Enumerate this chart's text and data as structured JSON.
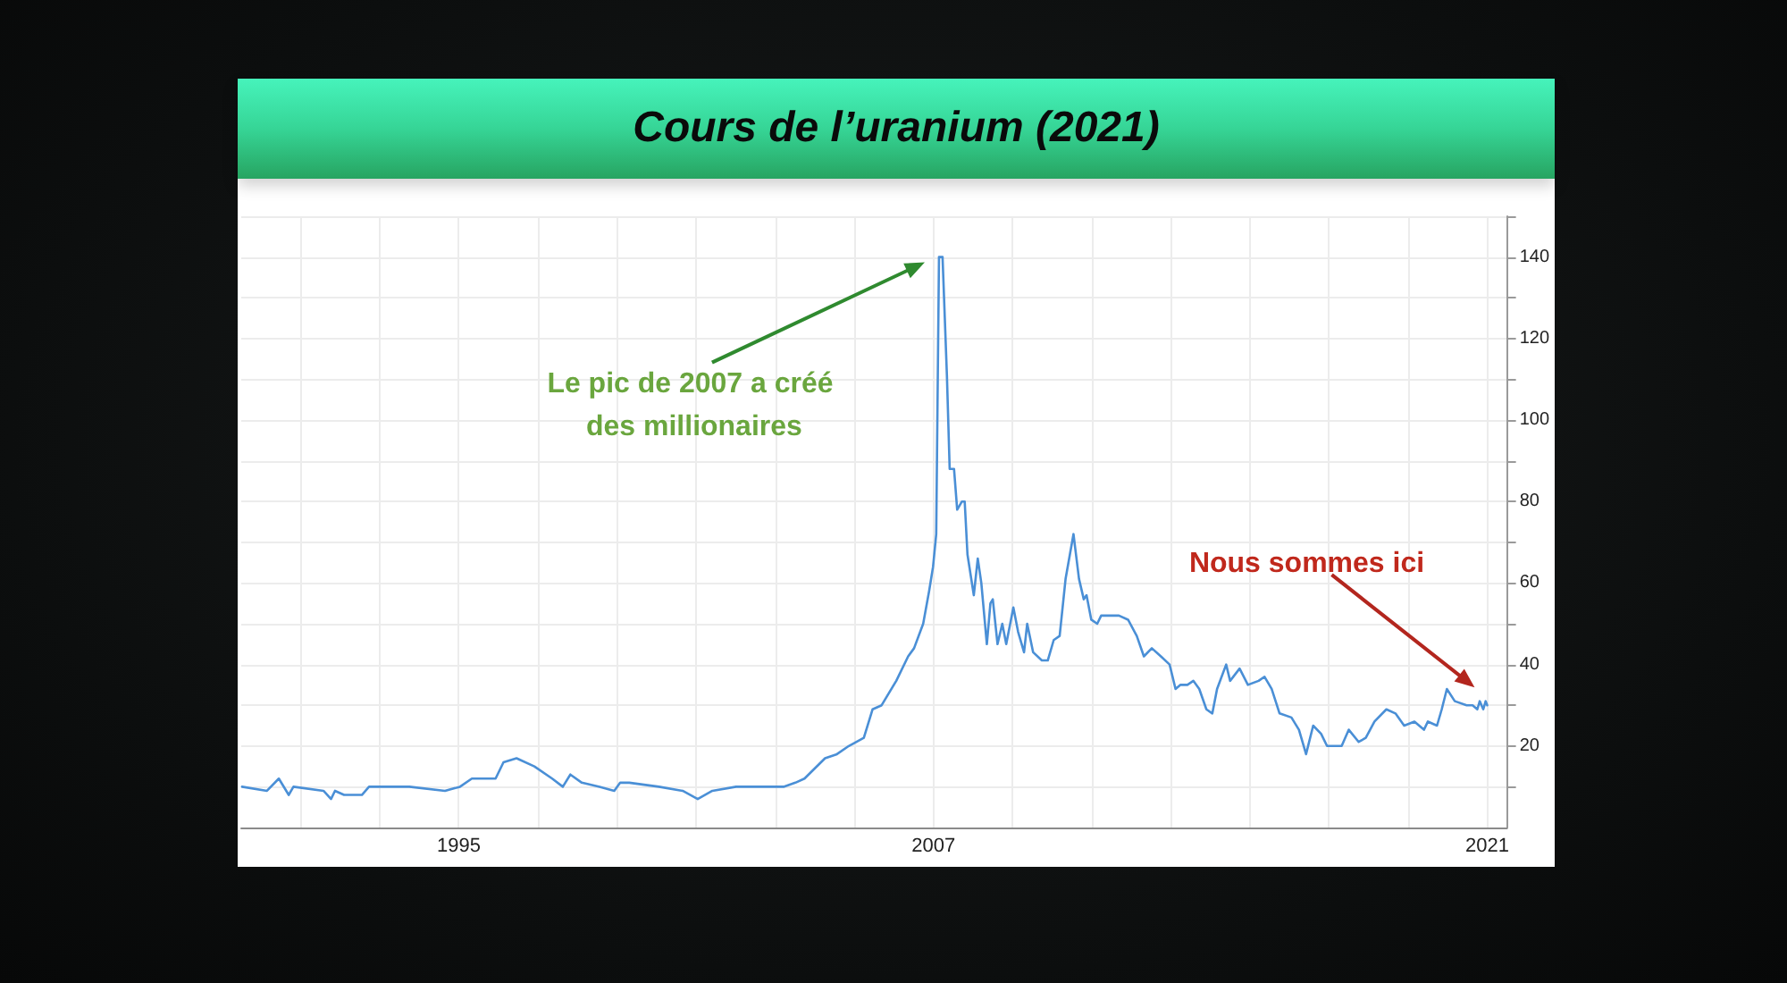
{
  "chart_data": {
    "type": "line",
    "title": "Cours de l’uranium (2021)",
    "x": [
      1989.52,
      1990.15,
      1990.45,
      1990.7,
      1990.82,
      1991.58,
      1991.77,
      1991.87,
      1992.1,
      1992.55,
      1992.73,
      1993.75,
      1994.65,
      1995.03,
      1995.33,
      1995.93,
      1996.13,
      1996.46,
      1996.91,
      1997.36,
      1997.63,
      1997.82,
      1998.11,
      1998.56,
      1998.93,
      1999.08,
      1999.31,
      2000.06,
      2000.66,
      2001.04,
      2001.41,
      2002.01,
      2003.21,
      2003.51,
      2003.74,
      2004.26,
      2004.56,
      2004.86,
      2005.24,
      2005.46,
      2005.69,
      2006.06,
      2006.36,
      2006.51,
      2006.74,
      2006.89,
      2006.99,
      2007.07,
      2007.14,
      2007.23,
      2007.34,
      2007.41,
      2007.52,
      2007.6,
      2007.72,
      2007.79,
      2007.86,
      2008.02,
      2008.12,
      2008.21,
      2008.35,
      2008.44,
      2008.5,
      2008.62,
      2008.74,
      2008.84,
      2009.02,
      2009.14,
      2009.29,
      2009.37,
      2009.52,
      2009.74,
      2009.89,
      2010.04,
      2010.19,
      2010.34,
      2010.54,
      2010.68,
      2010.8,
      2010.87,
      2010.99,
      2011.14,
      2011.24,
      2011.69,
      2011.92,
      2012.14,
      2012.32,
      2012.52,
      2012.75,
      2012.97,
      2013.12,
      2013.24,
      2013.42,
      2013.57,
      2013.72,
      2013.9,
      2014.05,
      2014.17,
      2014.4,
      2014.5,
      2014.74,
      2014.95,
      2015.22,
      2015.37,
      2015.55,
      2015.75,
      2016.05,
      2016.24,
      2016.42,
      2016.6,
      2016.8,
      2016.95,
      2017.32,
      2017.5,
      2017.75,
      2017.93,
      2018.15,
      2018.45,
      2018.68,
      2018.9,
      2019.16,
      2019.4,
      2019.5,
      2019.73,
      2019.85,
      2019.98,
      2020.18,
      2020.48,
      2020.63,
      2020.75,
      2020.81,
      2020.9,
      2020.96,
      2021.0
    ],
    "series": [
      {
        "color": "#4a8fd6",
        "values": [
          10,
          9,
          12,
          8,
          10,
          9,
          7,
          9,
          8,
          8,
          10,
          10,
          9,
          10,
          12,
          12,
          16,
          17,
          15,
          12,
          10,
          13,
          11,
          10,
          9,
          11,
          11,
          10,
          9,
          7,
          9,
          10,
          10,
          11,
          12,
          17,
          18,
          20,
          22,
          29,
          30,
          36,
          42,
          44,
          50,
          58,
          64,
          72,
          140,
          140,
          111,
          88,
          88,
          78,
          80,
          80,
          67,
          57,
          66,
          60,
          45,
          55,
          56,
          45,
          50,
          45,
          54,
          48,
          43,
          50,
          43,
          41,
          41,
          46,
          47,
          61,
          72,
          61,
          56,
          57,
          51,
          50,
          52,
          52,
          51,
          47,
          42,
          44,
          42,
          40,
          34,
          35,
          35,
          36,
          34,
          29,
          28,
          34,
          40,
          36,
          39,
          35,
          36,
          37,
          34,
          28,
          27,
          24,
          18,
          25,
          23,
          20,
          20,
          24,
          21,
          22,
          26,
          29,
          28,
          25,
          26,
          24,
          26,
          25,
          29,
          34,
          31,
          30,
          30,
          29,
          31,
          29,
          31,
          30
        ]
      }
    ],
    "xlim": [
      1989.5,
      2021.5
    ],
    "xticks": [
      {
        "value": 1991,
        "label": null
      },
      {
        "value": 1993,
        "label": null
      },
      1995,
      {
        "value": 1997,
        "label": null
      },
      {
        "value": 1999,
        "label": null
      },
      {
        "value": 2001,
        "label": null
      },
      {
        "value": 2003,
        "label": null
      },
      {
        "value": 2005,
        "label": null
      },
      2007,
      {
        "value": 2009,
        "label": null
      },
      {
        "value": 2011,
        "label": null
      },
      {
        "value": 2013,
        "label": null
      },
      {
        "value": 2015,
        "label": null
      },
      {
        "value": 2017,
        "label": null
      },
      {
        "value": 2019,
        "label": null
      },
      2021
    ],
    "ylim": [
      0,
      150
    ],
    "yticks": [
      {
        "value": 10,
        "label": null
      },
      20,
      {
        "value": 30,
        "label": null
      },
      40,
      {
        "value": 50,
        "label": null
      },
      60,
      {
        "value": 70,
        "label": null
      },
      80,
      {
        "value": 90,
        "label": null
      },
      100,
      {
        "value": 110,
        "label": null
      },
      120,
      {
        "value": 130,
        "label": null
      },
      140,
      {
        "value": 150,
        "label": null
      }
    ],
    "grid": true,
    "annotations": [
      "Le pic de 2007 a créé des millionaires",
      "Nous sommes ici"
    ]
  }
}
